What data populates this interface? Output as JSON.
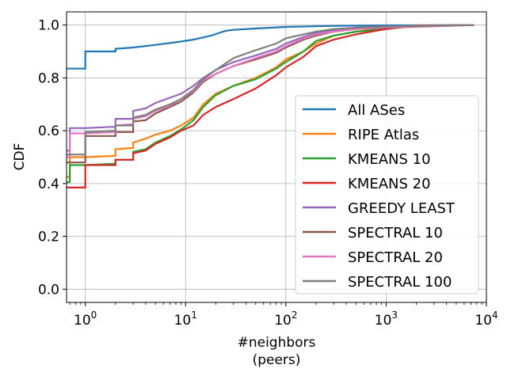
{
  "chart_data": {
    "type": "line",
    "step": true,
    "xscale": "log",
    "xlim": [
      0.65,
      10000
    ],
    "ylim": [
      -0.05,
      1.05
    ],
    "xlabel_lines": [
      "#neighbors",
      "(peers)"
    ],
    "ylabel": "CDF",
    "grid": true,
    "legend_position": "center-right",
    "x_ticks": [
      {
        "value": 1,
        "base": "10",
        "exp": "0"
      },
      {
        "value": 10,
        "base": "10",
        "exp": "1"
      },
      {
        "value": 100,
        "base": "10",
        "exp": "2"
      },
      {
        "value": 1000,
        "base": "10",
        "exp": "3"
      },
      {
        "value": 10000,
        "base": "10",
        "exp": "4"
      }
    ],
    "y_ticks": [
      {
        "value": 0.0,
        "label": "0.0"
      },
      {
        "value": 0.2,
        "label": "0.2"
      },
      {
        "value": 0.4,
        "label": "0.4"
      },
      {
        "value": 0.6,
        "label": "0.6"
      },
      {
        "value": 0.8,
        "label": "0.8"
      },
      {
        "value": 1.0,
        "label": "1.0"
      }
    ],
    "series": [
      {
        "name": "All ASes",
        "color": "#1f77b4",
        "points": [
          [
            0.65,
            0.835
          ],
          [
            1,
            0.835
          ],
          [
            1,
            0.9
          ],
          [
            2,
            0.9
          ],
          [
            2,
            0.91
          ],
          [
            3,
            0.915
          ],
          [
            5,
            0.925
          ],
          [
            8,
            0.935
          ],
          [
            12,
            0.945
          ],
          [
            18,
            0.96
          ],
          [
            25,
            0.978
          ],
          [
            30,
            0.982
          ],
          [
            50,
            0.987
          ],
          [
            100,
            0.993
          ],
          [
            300,
            0.997
          ],
          [
            1000,
            0.999
          ],
          [
            7500,
            1.0
          ]
        ]
      },
      {
        "name": "RIPE Atlas",
        "color": "#ff7f0e",
        "points": [
          [
            0.65,
            0.425
          ],
          [
            0.7,
            0.425
          ],
          [
            0.7,
            0.5
          ],
          [
            1,
            0.5
          ],
          [
            2,
            0.505
          ],
          [
            2,
            0.53
          ],
          [
            3,
            0.535
          ],
          [
            3,
            0.555
          ],
          [
            4,
            0.57
          ],
          [
            5,
            0.585
          ],
          [
            7,
            0.6
          ],
          [
            9,
            0.62
          ],
          [
            12,
            0.65
          ],
          [
            15,
            0.7
          ],
          [
            20,
            0.74
          ],
          [
            30,
            0.77
          ],
          [
            50,
            0.8
          ],
          [
            80,
            0.84
          ],
          [
            100,
            0.87
          ],
          [
            150,
            0.9
          ],
          [
            200,
            0.93
          ],
          [
            300,
            0.96
          ],
          [
            500,
            0.975
          ],
          [
            1000,
            0.99
          ],
          [
            2000,
            0.998
          ],
          [
            7500,
            1.0
          ]
        ]
      },
      {
        "name": "KMEANS 10",
        "color": "#2ca02c",
        "points": [
          [
            0.65,
            0.405
          ],
          [
            0.7,
            0.405
          ],
          [
            0.7,
            0.47
          ],
          [
            1,
            0.47
          ],
          [
            2,
            0.475
          ],
          [
            2,
            0.49
          ],
          [
            3,
            0.49
          ],
          [
            3,
            0.52
          ],
          [
            4,
            0.53
          ],
          [
            5,
            0.555
          ],
          [
            7,
            0.58
          ],
          [
            9,
            0.605
          ],
          [
            12,
            0.64
          ],
          [
            15,
            0.69
          ],
          [
            20,
            0.735
          ],
          [
            30,
            0.77
          ],
          [
            50,
            0.795
          ],
          [
            80,
            0.835
          ],
          [
            100,
            0.86
          ],
          [
            150,
            0.9
          ],
          [
            200,
            0.94
          ],
          [
            300,
            0.96
          ],
          [
            500,
            0.975
          ],
          [
            1000,
            0.985
          ],
          [
            2000,
            0.998
          ],
          [
            7500,
            1.0
          ]
        ]
      },
      {
        "name": "KMEANS 20",
        "color": "#d62728",
        "points": [
          [
            0.65,
            0.385
          ],
          [
            1,
            0.385
          ],
          [
            1,
            0.47
          ],
          [
            2,
            0.47
          ],
          [
            2,
            0.49
          ],
          [
            3,
            0.49
          ],
          [
            3,
            0.515
          ],
          [
            4,
            0.525
          ],
          [
            5,
            0.55
          ],
          [
            7,
            0.575
          ],
          [
            9,
            0.6
          ],
          [
            12,
            0.62
          ],
          [
            15,
            0.66
          ],
          [
            20,
            0.69
          ],
          [
            30,
            0.72
          ],
          [
            50,
            0.76
          ],
          [
            80,
            0.81
          ],
          [
            100,
            0.84
          ],
          [
            150,
            0.88
          ],
          [
            200,
            0.92
          ],
          [
            300,
            0.945
          ],
          [
            500,
            0.965
          ],
          [
            1000,
            0.985
          ],
          [
            2000,
            0.998
          ],
          [
            7500,
            1.0
          ]
        ]
      },
      {
        "name": "GREEDY LEAST",
        "color": "#9467bd",
        "points": [
          [
            0.65,
            0.525
          ],
          [
            0.7,
            0.525
          ],
          [
            0.7,
            0.61
          ],
          [
            1,
            0.61
          ],
          [
            2,
            0.615
          ],
          [
            2,
            0.645
          ],
          [
            3,
            0.645
          ],
          [
            3,
            0.675
          ],
          [
            4,
            0.685
          ],
          [
            5,
            0.705
          ],
          [
            7,
            0.725
          ],
          [
            9,
            0.74
          ],
          [
            12,
            0.77
          ],
          [
            15,
            0.8
          ],
          [
            20,
            0.83
          ],
          [
            30,
            0.86
          ],
          [
            50,
            0.885
          ],
          [
            80,
            0.91
          ],
          [
            100,
            0.93
          ],
          [
            150,
            0.955
          ],
          [
            200,
            0.97
          ],
          [
            300,
            0.98
          ],
          [
            500,
            0.99
          ],
          [
            1000,
            0.995
          ],
          [
            7500,
            1.0
          ]
        ]
      },
      {
        "name": "SPECTRAL 10",
        "color": "#8c564b",
        "points": [
          [
            0.65,
            0.48
          ],
          [
            1,
            0.48
          ],
          [
            1,
            0.58
          ],
          [
            2,
            0.58
          ],
          [
            2,
            0.595
          ],
          [
            3,
            0.595
          ],
          [
            3,
            0.635
          ],
          [
            4,
            0.64
          ],
          [
            5,
            0.665
          ],
          [
            7,
            0.69
          ],
          [
            9,
            0.71
          ],
          [
            12,
            0.745
          ],
          [
            15,
            0.785
          ],
          [
            20,
            0.815
          ],
          [
            30,
            0.845
          ],
          [
            50,
            0.87
          ],
          [
            80,
            0.895
          ],
          [
            100,
            0.915
          ],
          [
            150,
            0.945
          ],
          [
            200,
            0.96
          ],
          [
            300,
            0.975
          ],
          [
            500,
            0.985
          ],
          [
            1000,
            0.99
          ],
          [
            7500,
            1.0
          ]
        ]
      },
      {
        "name": "SPECTRAL 20",
        "color": "#e377c2",
        "points": [
          [
            0.65,
            0.5
          ],
          [
            0.7,
            0.5
          ],
          [
            0.7,
            0.59
          ],
          [
            1,
            0.59
          ],
          [
            2,
            0.595
          ],
          [
            2,
            0.62
          ],
          [
            3,
            0.625
          ],
          [
            3,
            0.645
          ],
          [
            4,
            0.655
          ],
          [
            5,
            0.675
          ],
          [
            7,
            0.695
          ],
          [
            9,
            0.72
          ],
          [
            12,
            0.75
          ],
          [
            15,
            0.79
          ],
          [
            20,
            0.815
          ],
          [
            30,
            0.845
          ],
          [
            50,
            0.875
          ],
          [
            80,
            0.9
          ],
          [
            100,
            0.92
          ],
          [
            150,
            0.95
          ],
          [
            200,
            0.965
          ],
          [
            300,
            0.975
          ],
          [
            500,
            0.985
          ],
          [
            1000,
            0.992
          ],
          [
            7500,
            1.0
          ]
        ]
      },
      {
        "name": "SPECTRAL 100",
        "color": "#7f7f7f",
        "points": [
          [
            0.65,
            0.51
          ],
          [
            1,
            0.51
          ],
          [
            1,
            0.595
          ],
          [
            2,
            0.6
          ],
          [
            2,
            0.62
          ],
          [
            3,
            0.62
          ],
          [
            3,
            0.65
          ],
          [
            4,
            0.66
          ],
          [
            5,
            0.68
          ],
          [
            7,
            0.7
          ],
          [
            9,
            0.72
          ],
          [
            12,
            0.755
          ],
          [
            15,
            0.795
          ],
          [
            20,
            0.83
          ],
          [
            30,
            0.875
          ],
          [
            50,
            0.905
          ],
          [
            80,
            0.93
          ],
          [
            100,
            0.95
          ],
          [
            150,
            0.965
          ],
          [
            200,
            0.975
          ],
          [
            300,
            0.985
          ],
          [
            500,
            0.99
          ],
          [
            1000,
            0.995
          ],
          [
            7500,
            1.0
          ]
        ]
      }
    ]
  }
}
